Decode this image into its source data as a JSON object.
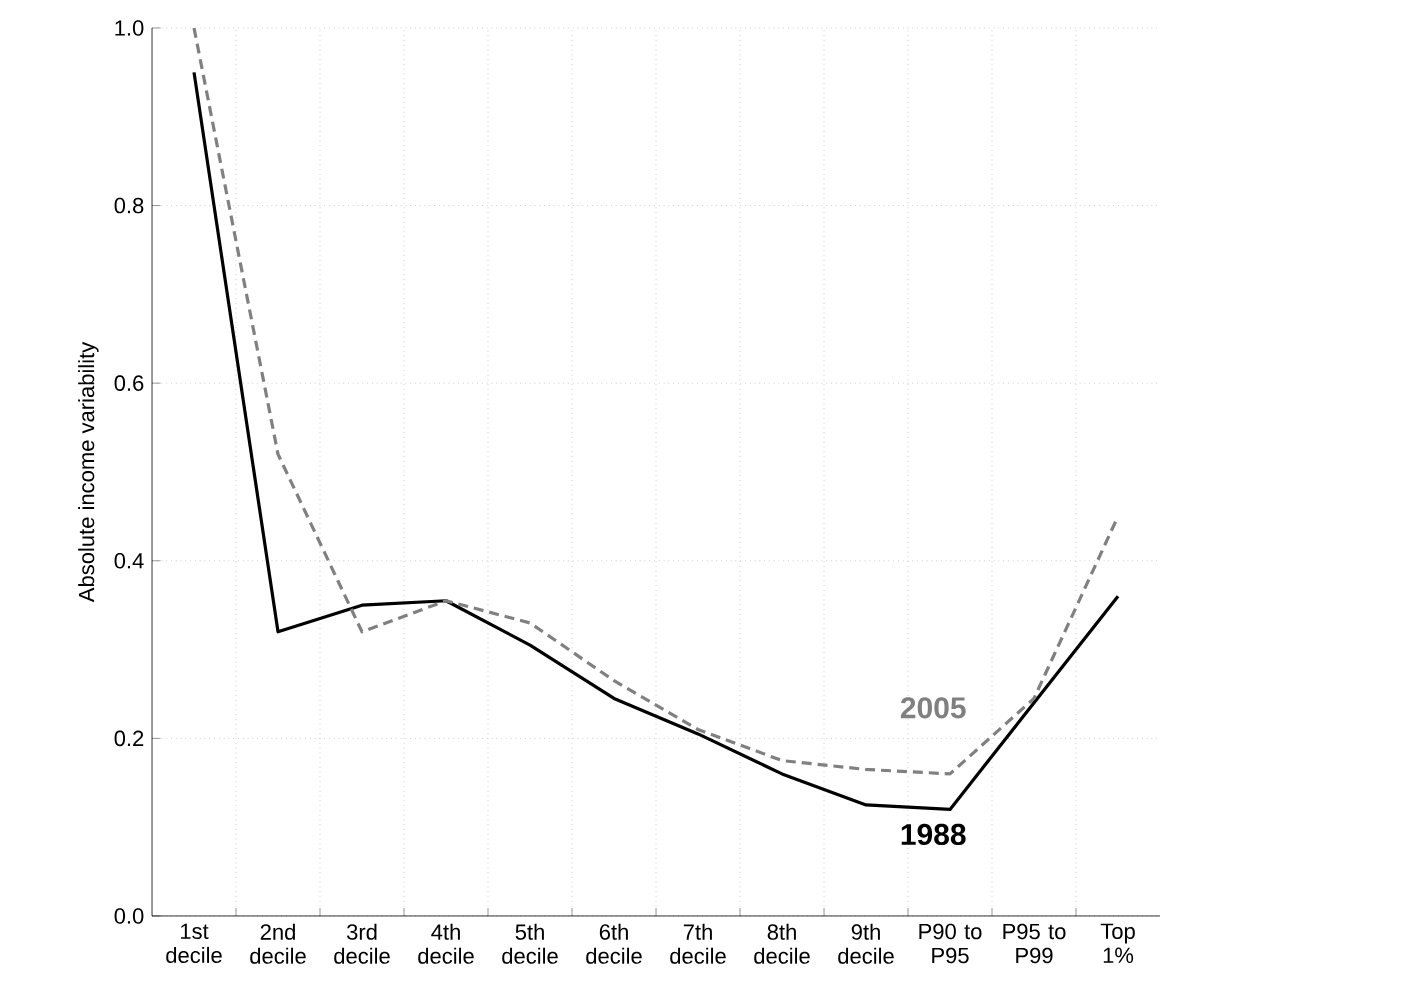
{
  "chart_data": {
    "type": "line",
    "ylabel": "Absolute income variability",
    "categories": [
      "1st decile",
      "2nd decile",
      "3rd decile",
      "4th decile",
      "5th decile",
      "6th decile",
      "7th decile",
      "8th decile",
      "9th decile",
      "P90 to P95",
      "P95 to P99",
      "Top 1%"
    ],
    "series": [
      {
        "name": "1988",
        "color": "#000000",
        "line_style": "solid",
        "values": [
          0.95,
          0.32,
          0.35,
          0.355,
          0.305,
          0.245,
          0.205,
          0.16,
          0.125,
          0.12,
          0.24,
          0.36
        ]
      },
      {
        "name": "2005",
        "color": "#808080",
        "line_style": "dashed",
        "values": [
          1.0,
          0.52,
          0.32,
          0.355,
          0.33,
          0.265,
          0.21,
          0.175,
          0.165,
          0.16,
          0.245,
          0.45
        ]
      }
    ],
    "ylim": [
      0,
      1.0
    ],
    "yticks": [
      {
        "value": 0,
        "label": "0.0"
      },
      {
        "value": 0.2,
        "label": "0.2"
      },
      {
        "value": 0.4,
        "label": "0.4"
      },
      {
        "value": 0.6,
        "label": "0.6"
      },
      {
        "value": 0.8,
        "label": "0.8"
      },
      {
        "value": 1.0,
        "label": "1.0"
      }
    ],
    "grid": true,
    "marker": "none"
  }
}
